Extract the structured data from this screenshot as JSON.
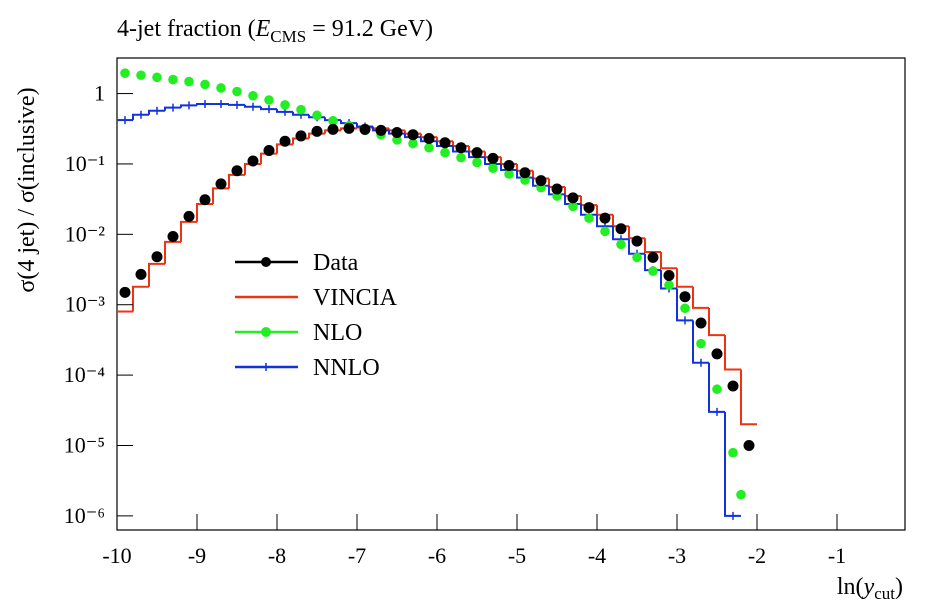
{
  "chart_data": {
    "type": "histogram",
    "title": {
      "before": "4-jet fraction (",
      "symbol": "E",
      "sub": "CMS",
      "after": " = 91.2 GeV)"
    },
    "y_label": "σ(4 jet) / σ(inclusive)",
    "x_label": {
      "before": "ln(",
      "symbol": "y",
      "sub": "cut",
      "after": ")"
    },
    "xlim": [
      -10,
      -0.15
    ],
    "xticks": [
      -10,
      -9,
      -8,
      -7,
      -6,
      -5,
      -4,
      -3,
      -2,
      -1
    ],
    "ylim": [
      6.3e-07,
      3.2
    ],
    "log_y": true,
    "yticks": [
      {
        "value": 1e-06,
        "label": "10⁻⁶"
      },
      {
        "value": 1e-05,
        "label": "10⁻⁵"
      },
      {
        "value": 0.0001,
        "label": "10⁻⁴"
      },
      {
        "value": 0.001,
        "label": "10⁻³"
      },
      {
        "value": 0.01,
        "label": "10⁻²"
      },
      {
        "value": 0.1,
        "label": "10⁻¹"
      },
      1
    ],
    "legend": "center left",
    "series": [
      {
        "name": "Data",
        "type": "scatter",
        "color": "#000000",
        "marker": "circle",
        "x": [
          -9.9,
          -9.7,
          -9.5,
          -9.3,
          -9.1,
          -8.9,
          -8.7,
          -8.5,
          -8.3,
          -8.1,
          -7.9,
          -7.7,
          -7.5,
          -7.3,
          -7.1,
          -6.9,
          -6.7,
          -6.5,
          -6.3,
          -6.1,
          -5.9,
          -5.7,
          -5.5,
          -5.3,
          -5.1,
          -4.9,
          -4.7,
          -4.5,
          -4.3,
          -4.1,
          -3.9,
          -3.7,
          -3.5,
          -3.3,
          -3.1,
          -2.9,
          -2.7,
          -2.5,
          -2.3,
          -2.1
        ],
        "values": [
          0.0015,
          0.0027,
          0.0048,
          0.0093,
          0.018,
          0.031,
          0.052,
          0.08,
          0.11,
          0.155,
          0.21,
          0.25,
          0.29,
          0.31,
          0.32,
          0.31,
          0.3,
          0.28,
          0.26,
          0.23,
          0.2,
          0.17,
          0.145,
          0.12,
          0.095,
          0.075,
          0.058,
          0.044,
          0.033,
          0.024,
          0.017,
          0.012,
          0.008,
          0.0047,
          0.0026,
          0.0013,
          0.00055,
          0.0002,
          7e-05,
          1e-05
        ]
      },
      {
        "name": "VINCIA",
        "type": "step",
        "color": "#ee3311",
        "marker": null,
        "bins": [
          -10,
          -9.8,
          -9.6,
          -9.4,
          -9.2,
          -9,
          -8.8,
          -8.6,
          -8.4,
          -8.2,
          -8,
          -7.8,
          -7.6,
          -7.4,
          -7.2,
          -7,
          -6.8,
          -6.6,
          -6.4,
          -6.2,
          -6,
          -5.8,
          -5.6,
          -5.4,
          -5.2,
          -5,
          -4.8,
          -4.6,
          -4.4,
          -4.2,
          -4,
          -3.8,
          -3.6,
          -3.4,
          -3.2,
          -3,
          -2.8,
          -2.6,
          -2.4,
          -2.2,
          -2
        ],
        "values": [
          0.0008,
          0.0018,
          0.0038,
          0.0078,
          0.015,
          0.027,
          0.045,
          0.07,
          0.1,
          0.14,
          0.19,
          0.23,
          0.27,
          0.3,
          0.32,
          0.33,
          0.32,
          0.3,
          0.27,
          0.24,
          0.21,
          0.18,
          0.15,
          0.125,
          0.1,
          0.08,
          0.062,
          0.047,
          0.035,
          0.026,
          0.019,
          0.013,
          0.0088,
          0.0056,
          0.0033,
          0.0018,
          0.0009,
          0.00037,
          0.00012,
          2e-05
        ]
      },
      {
        "name": "NLO",
        "type": "scatter",
        "color": "#22ee22",
        "marker": "circle",
        "x": [
          -9.9,
          -9.7,
          -9.5,
          -9.3,
          -9.1,
          -8.9,
          -8.7,
          -8.5,
          -8.3,
          -8.1,
          -7.9,
          -7.7,
          -7.5,
          -7.3,
          -7.1,
          -6.9,
          -6.7,
          -6.5,
          -6.3,
          -6.1,
          -5.9,
          -5.7,
          -5.5,
          -5.3,
          -5.1,
          -4.9,
          -4.7,
          -4.5,
          -4.3,
          -4.1,
          -3.9,
          -3.7,
          -3.5,
          -3.3,
          -3.1,
          -2.9,
          -2.7,
          -2.5,
          -2.3,
          -2.2
        ],
        "values": [
          1.95,
          1.82,
          1.7,
          1.58,
          1.48,
          1.35,
          1.2,
          1.07,
          0.93,
          0.81,
          0.69,
          0.59,
          0.49,
          0.41,
          0.35,
          0.3,
          0.26,
          0.22,
          0.195,
          0.17,
          0.145,
          0.123,
          0.105,
          0.087,
          0.072,
          0.059,
          0.046,
          0.035,
          0.025,
          0.017,
          0.011,
          0.0072,
          0.0047,
          0.003,
          0.0019,
          0.00089,
          0.00028,
          6.3e-05,
          7.9e-06,
          2e-06
        ]
      },
      {
        "name": "NNLO",
        "type": "step",
        "color": "#1133dd",
        "marker": "plus",
        "bins": [
          -10,
          -9.8,
          -9.6,
          -9.4,
          -9.2,
          -9,
          -8.8,
          -8.6,
          -8.4,
          -8.2,
          -8,
          -7.8,
          -7.6,
          -7.4,
          -7.2,
          -7,
          -6.8,
          -6.6,
          -6.4,
          -6.2,
          -6,
          -5.8,
          -5.6,
          -5.4,
          -5.2,
          -5,
          -4.8,
          -4.6,
          -4.4,
          -4.2,
          -4,
          -3.8,
          -3.6,
          -3.4,
          -3.2,
          -3,
          -2.8,
          -2.6,
          -2.4,
          -2.2
        ],
        "values": [
          0.42,
          0.5,
          0.57,
          0.63,
          0.68,
          0.71,
          0.71,
          0.69,
          0.65,
          0.6,
          0.55,
          0.5,
          0.46,
          0.42,
          0.38,
          0.34,
          0.3,
          0.27,
          0.24,
          0.21,
          0.18,
          0.15,
          0.125,
          0.1,
          0.082,
          0.064,
          0.049,
          0.037,
          0.027,
          0.019,
          0.013,
          0.0085,
          0.0053,
          0.0031,
          0.0017,
          0.0006,
          0.00015,
          3e-05,
          1e-06
        ]
      }
    ]
  }
}
